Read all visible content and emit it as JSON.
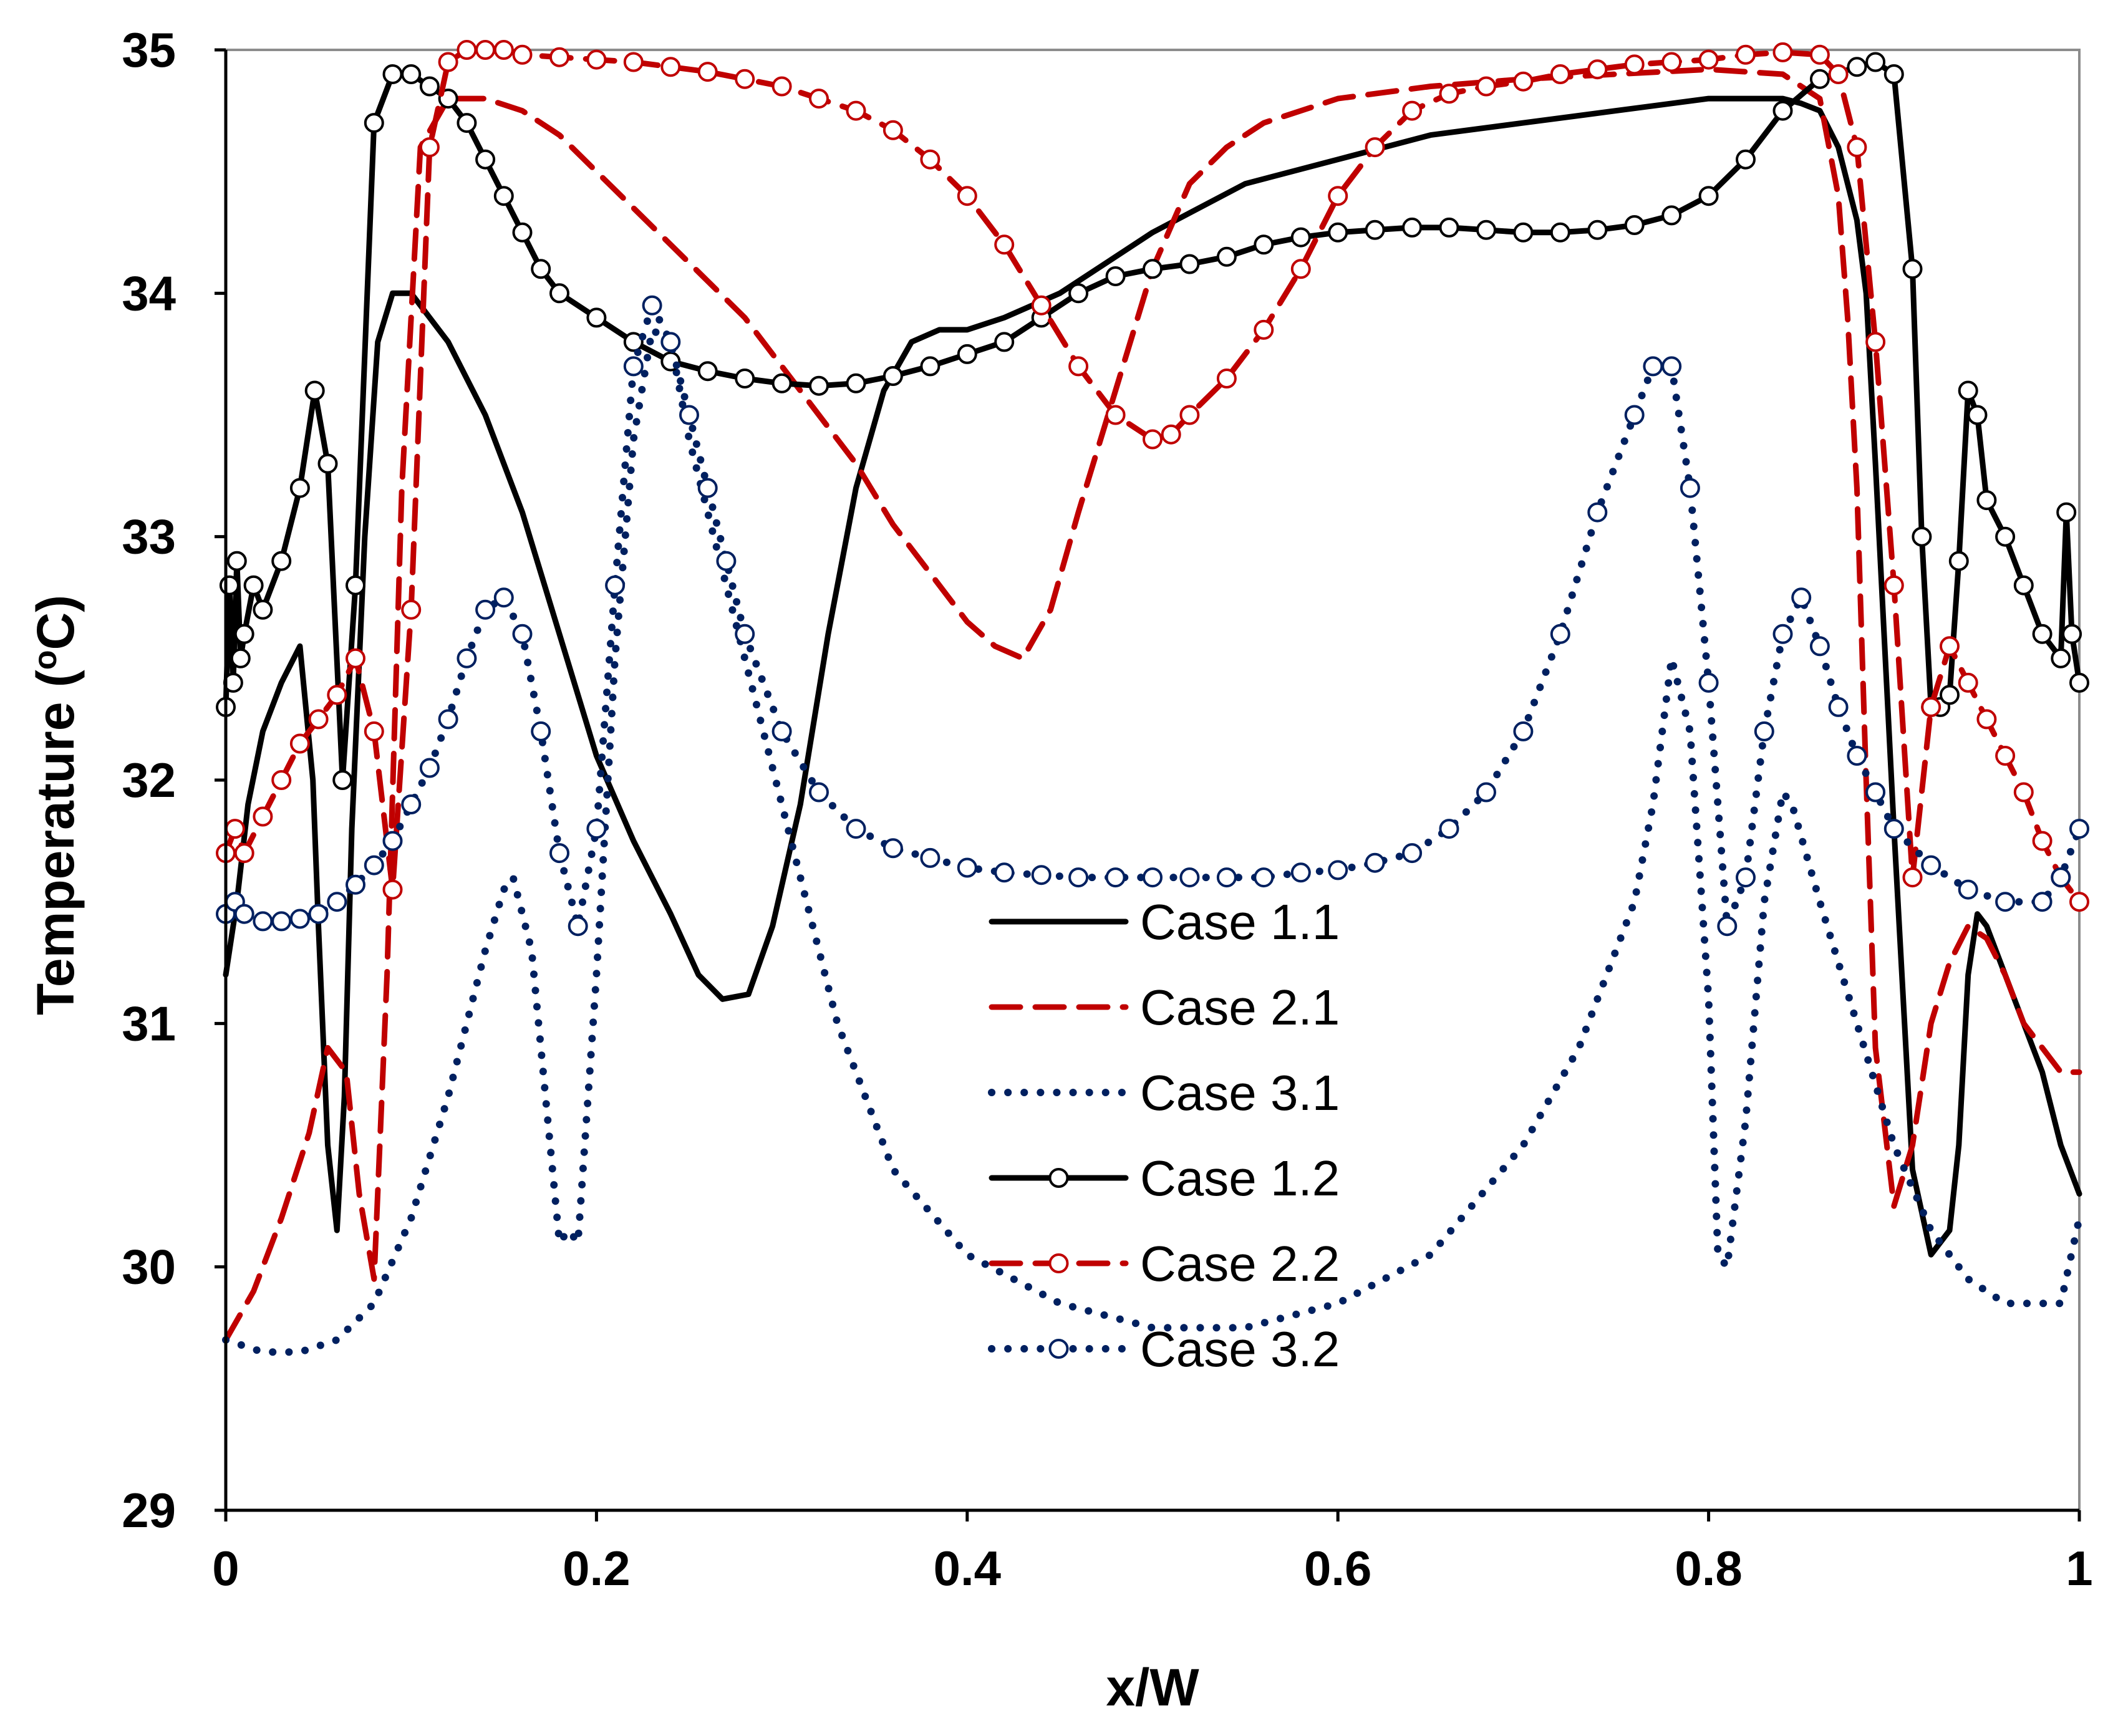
{
  "chart_data": {
    "type": "line",
    "title": "",
    "xlabel": "x/W",
    "ylabel": "Temperature (°C)",
    "ylabel_parts": {
      "main": "Temperature (",
      "sup": "o",
      "unit": "C)"
    },
    "xlim": [
      0,
      1
    ],
    "ylim": [
      29,
      35
    ],
    "x_ticks": [
      0,
      0.2,
      0.4,
      0.6,
      0.8,
      1
    ],
    "x_tick_labels": [
      "0",
      "0.2",
      "0.4",
      "0.6",
      "0.8",
      "1"
    ],
    "y_ticks": [
      29,
      30,
      31,
      32,
      33,
      34,
      35
    ],
    "y_tick_labels": [
      "29",
      "30",
      "31",
      "32",
      "33",
      "34",
      "35"
    ],
    "grid": false,
    "legend_position": "center",
    "series": [
      {
        "name": "Case 1.1",
        "color": "#000000",
        "dash": "solid",
        "marker": "none",
        "x": [
          0,
          0.006,
          0.012,
          0.02,
          0.03,
          0.04,
          0.047,
          0.05,
          0.055,
          0.06,
          0.064,
          0.068,
          0.075,
          0.082,
          0.09,
          0.1,
          0.12,
          0.14,
          0.16,
          0.18,
          0.2,
          0.22,
          0.24,
          0.255,
          0.268,
          0.282,
          0.295,
          0.31,
          0.325,
          0.34,
          0.355,
          0.37,
          0.385,
          0.4,
          0.42,
          0.45,
          0.5,
          0.55,
          0.6,
          0.65,
          0.7,
          0.75,
          0.8,
          0.82,
          0.84,
          0.85,
          0.86,
          0.87,
          0.88,
          0.885,
          0.89,
          0.9,
          0.91,
          0.92,
          0.93,
          0.935,
          0.94,
          0.945,
          0.95,
          0.96,
          0.97,
          0.98,
          0.99,
          1.0
        ],
        "y": [
          31.2,
          31.5,
          31.9,
          32.2,
          32.4,
          32.55,
          32.0,
          31.4,
          30.5,
          30.15,
          30.7,
          31.8,
          33.0,
          33.8,
          34.0,
          34.0,
          33.8,
          33.5,
          33.1,
          32.6,
          32.1,
          31.75,
          31.45,
          31.2,
          31.1,
          31.12,
          31.4,
          31.9,
          32.6,
          33.2,
          33.6,
          33.8,
          33.85,
          33.85,
          33.9,
          34.0,
          34.25,
          34.45,
          34.55,
          34.65,
          34.7,
          34.75,
          34.8,
          34.8,
          34.8,
          34.78,
          34.75,
          34.6,
          34.3,
          34.0,
          33.3,
          31.8,
          30.4,
          30.05,
          30.15,
          30.5,
          31.2,
          31.45,
          31.4,
          31.2,
          31.0,
          30.8,
          30.5,
          30.3
        ]
      },
      {
        "name": "Case 2.1",
        "color": "#c00000",
        "dash": "dash",
        "marker": "none",
        "x": [
          0,
          0.015,
          0.03,
          0.045,
          0.055,
          0.065,
          0.072,
          0.08,
          0.087,
          0.095,
          0.105,
          0.12,
          0.14,
          0.16,
          0.18,
          0.2,
          0.22,
          0.24,
          0.26,
          0.28,
          0.3,
          0.32,
          0.34,
          0.36,
          0.38,
          0.4,
          0.415,
          0.43,
          0.445,
          0.46,
          0.48,
          0.5,
          0.52,
          0.54,
          0.56,
          0.58,
          0.6,
          0.65,
          0.7,
          0.75,
          0.8,
          0.84,
          0.86,
          0.87,
          0.875,
          0.88,
          0.885,
          0.89,
          0.9,
          0.91,
          0.92,
          0.93,
          0.94,
          0.95,
          0.96,
          0.97,
          0.98,
          0.99,
          1.0
        ],
        "y": [
          29.7,
          29.9,
          30.2,
          30.55,
          30.9,
          30.8,
          30.3,
          29.95,
          31.2,
          33.2,
          34.6,
          34.8,
          34.8,
          34.75,
          34.65,
          34.5,
          34.35,
          34.2,
          34.05,
          33.9,
          33.7,
          33.5,
          33.3,
          33.05,
          32.85,
          32.65,
          32.55,
          32.5,
          32.7,
          33.1,
          33.6,
          34.1,
          34.45,
          34.6,
          34.7,
          34.75,
          34.8,
          34.85,
          34.88,
          34.9,
          34.92,
          34.9,
          34.8,
          34.4,
          33.9,
          33.2,
          32.0,
          30.9,
          30.25,
          30.5,
          31.0,
          31.25,
          31.4,
          31.35,
          31.2,
          31.0,
          30.9,
          30.8,
          30.8
        ]
      },
      {
        "name": "Case 3.1",
        "color": "#002060",
        "dash": "dot",
        "marker": "none",
        "x": [
          0,
          0.02,
          0.04,
          0.06,
          0.08,
          0.1,
          0.12,
          0.14,
          0.15,
          0.155,
          0.165,
          0.175,
          0.18,
          0.185,
          0.19,
          0.2,
          0.21,
          0.22,
          0.23,
          0.24,
          0.25,
          0.27,
          0.3,
          0.33,
          0.36,
          0.4,
          0.45,
          0.5,
          0.55,
          0.6,
          0.65,
          0.7,
          0.73,
          0.76,
          0.77,
          0.78,
          0.79,
          0.8,
          0.805,
          0.81,
          0.82,
          0.83,
          0.84,
          0.845,
          0.86,
          0.88,
          0.9,
          0.92,
          0.94,
          0.96,
          0.98,
          0.99,
          1.0
        ],
        "y": [
          29.7,
          29.65,
          29.65,
          29.7,
          29.85,
          30.2,
          30.7,
          31.3,
          31.55,
          31.6,
          31.3,
          30.5,
          30.1,
          30.15,
          30.1,
          31.2,
          32.5,
          33.4,
          33.85,
          33.8,
          33.4,
          32.8,
          31.9,
          31.0,
          30.4,
          30.05,
          29.85,
          29.75,
          29.75,
          29.85,
          30.05,
          30.5,
          30.9,
          31.5,
          31.9,
          32.5,
          32.2,
          31.1,
          30.05,
          30.0,
          30.6,
          31.5,
          31.95,
          31.9,
          31.5,
          31.0,
          30.5,
          30.15,
          29.95,
          29.85,
          29.85,
          29.85,
          30.2
        ]
      },
      {
        "name": "Case 1.2",
        "color": "#000000",
        "dash": "solid",
        "marker": "open-circle",
        "x": [
          0,
          0.002,
          0.004,
          0.006,
          0.008,
          0.01,
          0.015,
          0.02,
          0.03,
          0.04,
          0.048,
          0.055,
          0.063,
          0.07,
          0.08,
          0.09,
          0.1,
          0.11,
          0.12,
          0.13,
          0.14,
          0.15,
          0.16,
          0.17,
          0.18,
          0.2,
          0.22,
          0.24,
          0.26,
          0.28,
          0.3,
          0.32,
          0.34,
          0.36,
          0.38,
          0.4,
          0.42,
          0.44,
          0.46,
          0.48,
          0.5,
          0.52,
          0.54,
          0.56,
          0.58,
          0.6,
          0.62,
          0.64,
          0.66,
          0.68,
          0.7,
          0.72,
          0.74,
          0.76,
          0.78,
          0.8,
          0.82,
          0.84,
          0.86,
          0.88,
          0.89,
          0.9,
          0.91,
          0.915,
          0.92,
          0.925,
          0.93,
          0.935,
          0.94,
          0.945,
          0.95,
          0.96,
          0.97,
          0.98,
          0.99,
          0.993,
          0.996,
          1.0
        ],
        "y": [
          32.3,
          32.8,
          32.4,
          32.9,
          32.5,
          32.6,
          32.8,
          32.7,
          32.9,
          33.2,
          33.6,
          33.3,
          32.0,
          32.8,
          34.7,
          34.9,
          34.9,
          34.85,
          34.8,
          34.7,
          34.55,
          34.4,
          34.25,
          34.1,
          34.0,
          33.9,
          33.8,
          33.72,
          33.68,
          33.65,
          33.63,
          33.62,
          33.63,
          33.66,
          33.7,
          33.75,
          33.8,
          33.9,
          34.0,
          34.07,
          34.1,
          34.12,
          34.15,
          34.2,
          34.23,
          34.25,
          34.26,
          34.27,
          34.27,
          34.26,
          34.25,
          34.25,
          34.26,
          34.28,
          34.32,
          34.4,
          34.55,
          34.75,
          34.88,
          34.93,
          34.95,
          34.9,
          34.1,
          33.0,
          32.3,
          32.3,
          32.35,
          32.9,
          33.6,
          33.5,
          33.15,
          33.0,
          32.8,
          32.6,
          32.5,
          33.1,
          32.6,
          32.4
        ]
      },
      {
        "name": "Case 2.2",
        "color": "#c00000",
        "dash": "dash",
        "marker": "open-circle",
        "x": [
          0,
          0.005,
          0.01,
          0.02,
          0.03,
          0.04,
          0.05,
          0.06,
          0.07,
          0.08,
          0.09,
          0.1,
          0.11,
          0.12,
          0.13,
          0.14,
          0.15,
          0.16,
          0.18,
          0.2,
          0.22,
          0.24,
          0.26,
          0.28,
          0.3,
          0.32,
          0.34,
          0.36,
          0.38,
          0.4,
          0.42,
          0.44,
          0.46,
          0.48,
          0.5,
          0.51,
          0.52,
          0.54,
          0.56,
          0.58,
          0.6,
          0.62,
          0.64,
          0.66,
          0.68,
          0.7,
          0.72,
          0.74,
          0.76,
          0.78,
          0.8,
          0.82,
          0.84,
          0.86,
          0.87,
          0.88,
          0.89,
          0.9,
          0.91,
          0.92,
          0.93,
          0.94,
          0.95,
          0.96,
          0.97,
          0.98,
          0.99,
          1.0
        ],
        "y": [
          31.7,
          31.8,
          31.7,
          31.85,
          32.0,
          32.15,
          32.25,
          32.35,
          32.5,
          32.2,
          31.55,
          32.7,
          34.6,
          34.95,
          35.0,
          35.0,
          35.0,
          34.98,
          34.97,
          34.96,
          34.95,
          34.93,
          34.91,
          34.88,
          34.85,
          34.8,
          34.75,
          34.67,
          34.55,
          34.4,
          34.2,
          33.95,
          33.7,
          33.5,
          33.4,
          33.42,
          33.5,
          33.65,
          33.85,
          34.1,
          34.4,
          34.6,
          34.75,
          34.82,
          34.85,
          34.87,
          34.9,
          34.92,
          34.94,
          34.95,
          34.96,
          34.98,
          34.99,
          34.98,
          34.9,
          34.6,
          33.8,
          32.8,
          31.6,
          32.3,
          32.55,
          32.4,
          32.25,
          32.1,
          31.95,
          31.75,
          31.6,
          31.5
        ]
      },
      {
        "name": "Case 3.2",
        "color": "#002060",
        "dash": "dot",
        "marker": "open-circle",
        "x": [
          0,
          0.005,
          0.01,
          0.02,
          0.03,
          0.04,
          0.05,
          0.06,
          0.07,
          0.08,
          0.09,
          0.1,
          0.11,
          0.12,
          0.13,
          0.14,
          0.15,
          0.16,
          0.17,
          0.18,
          0.19,
          0.2,
          0.21,
          0.22,
          0.23,
          0.24,
          0.25,
          0.26,
          0.27,
          0.28,
          0.3,
          0.32,
          0.34,
          0.36,
          0.38,
          0.4,
          0.42,
          0.44,
          0.46,
          0.48,
          0.5,
          0.52,
          0.54,
          0.56,
          0.58,
          0.6,
          0.62,
          0.64,
          0.66,
          0.68,
          0.7,
          0.72,
          0.74,
          0.76,
          0.77,
          0.78,
          0.79,
          0.8,
          0.81,
          0.82,
          0.83,
          0.84,
          0.85,
          0.86,
          0.87,
          0.88,
          0.89,
          0.9,
          0.92,
          0.94,
          0.96,
          0.98,
          0.99,
          1.0
        ],
        "y": [
          31.45,
          31.5,
          31.45,
          31.42,
          31.42,
          31.43,
          31.45,
          31.5,
          31.57,
          31.65,
          31.75,
          31.9,
          32.05,
          32.25,
          32.5,
          32.7,
          32.75,
          32.6,
          32.2,
          31.7,
          31.4,
          31.8,
          32.8,
          33.7,
          33.95,
          33.8,
          33.5,
          33.2,
          32.9,
          32.6,
          32.2,
          31.95,
          31.8,
          31.72,
          31.68,
          31.64,
          31.62,
          31.61,
          31.6,
          31.6,
          31.6,
          31.6,
          31.6,
          31.6,
          31.62,
          31.63,
          31.66,
          31.7,
          31.8,
          31.95,
          32.2,
          32.6,
          33.1,
          33.5,
          33.7,
          33.7,
          33.2,
          32.4,
          31.4,
          31.6,
          32.2,
          32.6,
          32.75,
          32.55,
          32.3,
          32.1,
          31.95,
          31.8,
          31.65,
          31.55,
          31.5,
          31.5,
          31.6,
          31.8
        ]
      }
    ]
  }
}
